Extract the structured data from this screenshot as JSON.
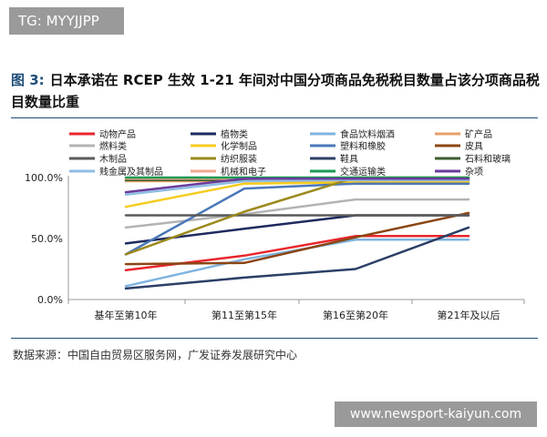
{
  "watermark_top": "TG: MYYJJPP",
  "watermark_bottom": "www.newsport-kaiyun.com",
  "figure_label": "图 3:",
  "title": "日本承诺在 RCEP 生效 1-21 年间对中国分项商品免税税目数量占该分项商品税目数量比重",
  "source": "数据来源：中国自由贸易区服务网，广发证券发展研究中心",
  "chart_data": {
    "type": "line",
    "title": "日本承诺在 RCEP 生效 1-21 年间对中国分项商品免税税目数量占该分项商品税目数量比重",
    "xlabel": "",
    "ylabel": "",
    "categories": [
      "基年至第10年",
      "第11至第15年",
      "第16至第20年",
      "第21年及以后"
    ],
    "ylim": [
      0,
      1
    ],
    "yticks": [
      "0.0%",
      "50.0%",
      "100.0%"
    ],
    "grid": false,
    "legend_position": "top",
    "series": [
      {
        "name": "动物产品",
        "color": "#e8262d",
        "values": [
          0.24,
          0.36,
          0.52,
          0.52
        ]
      },
      {
        "name": "植物类",
        "color": "#1c2a5e",
        "values": [
          0.46,
          0.58,
          0.69,
          0.69
        ]
      },
      {
        "name": "食品饮料烟酒",
        "color": "#7fb3df",
        "values": [
          0.11,
          0.33,
          0.49,
          0.49
        ]
      },
      {
        "name": "矿产品",
        "color": "#e8a06a",
        "values": [
          0.97,
          0.97,
          0.97,
          0.97
        ]
      },
      {
        "name": "燃料类",
        "color": "#b3b3b3",
        "values": [
          0.59,
          0.7,
          0.82,
          0.82
        ]
      },
      {
        "name": "化学制品",
        "color": "#f5cc1f",
        "values": [
          0.76,
          0.95,
          0.96,
          0.96
        ]
      },
      {
        "name": "塑料和橡胶",
        "color": "#4a77b8",
        "values": [
          0.37,
          0.91,
          0.95,
          0.95
        ]
      },
      {
        "name": "皮具",
        "color": "#8b4513",
        "values": [
          0.29,
          0.3,
          0.51,
          0.71
        ]
      },
      {
        "name": "木制品",
        "color": "#5a5a5a",
        "values": [
          0.69,
          0.69,
          0.69,
          0.69
        ]
      },
      {
        "name": "纺织服装",
        "color": "#9c8a1e",
        "values": [
          0.37,
          0.72,
          1.0,
          1.0
        ]
      },
      {
        "name": "鞋具",
        "color": "#2b3f66",
        "values": [
          0.09,
          0.18,
          0.25,
          0.59
        ]
      },
      {
        "name": "石料和玻璃",
        "color": "#3a5e2d",
        "values": [
          0.98,
          0.98,
          0.98,
          0.98
        ]
      },
      {
        "name": "贱金属及其制品",
        "color": "#8fbde3",
        "values": [
          0.86,
          0.97,
          0.98,
          0.98
        ]
      },
      {
        "name": "机械和电子",
        "color": "#f0a98f",
        "values": [
          0.99,
          0.99,
          0.99,
          0.99
        ]
      },
      {
        "name": "交通运输类",
        "color": "#1a9a55",
        "values": [
          1.0,
          1.0,
          1.0,
          1.0
        ]
      },
      {
        "name": "杂项",
        "color": "#6a3b9c",
        "values": [
          0.88,
          0.99,
          0.99,
          0.99
        ]
      }
    ]
  }
}
